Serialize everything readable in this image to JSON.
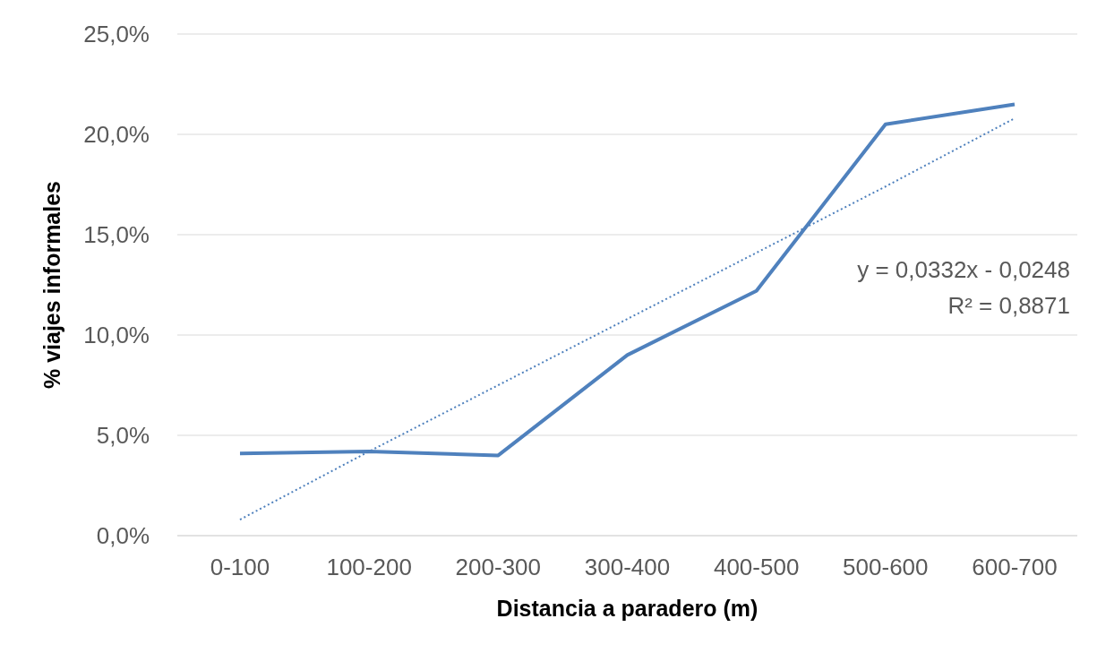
{
  "chart_data": {
    "type": "line",
    "xlabel": "Distancia a paradero (m)",
    "ylabel": "% viajes informales",
    "categories": [
      "0-100",
      "100-200",
      "200-300",
      "300-400",
      "400-500",
      "500-600",
      "600-700"
    ],
    "series": [
      {
        "color": "#4f81bd",
        "line_style": "solid",
        "values": [
          4.1,
          4.2,
          4.0,
          9.0,
          12.2,
          20.5,
          21.5
        ]
      },
      {
        "type": "line",
        "color": "#4f81bd",
        "line_style": "dotted",
        "values": [
          0.8,
          4.2,
          7.5,
          10.8,
          14.1,
          17.4,
          20.8
        ]
      }
    ],
    "ylim": [
      0,
      25
    ],
    "yticks": [
      {
        "value": 0,
        "label": "0,0%"
      },
      {
        "value": 5,
        "label": "5,0%"
      },
      {
        "value": 10,
        "label": "10,0%"
      },
      {
        "value": 15,
        "label": "15,0%"
      },
      {
        "value": 20,
        "label": "20,0%"
      },
      {
        "value": 25,
        "label": "25,0%"
      }
    ],
    "grid": "y",
    "legend": false,
    "annotations": [
      "y = 0,0332x - 0,0248",
      "R² = 0,8871"
    ]
  }
}
